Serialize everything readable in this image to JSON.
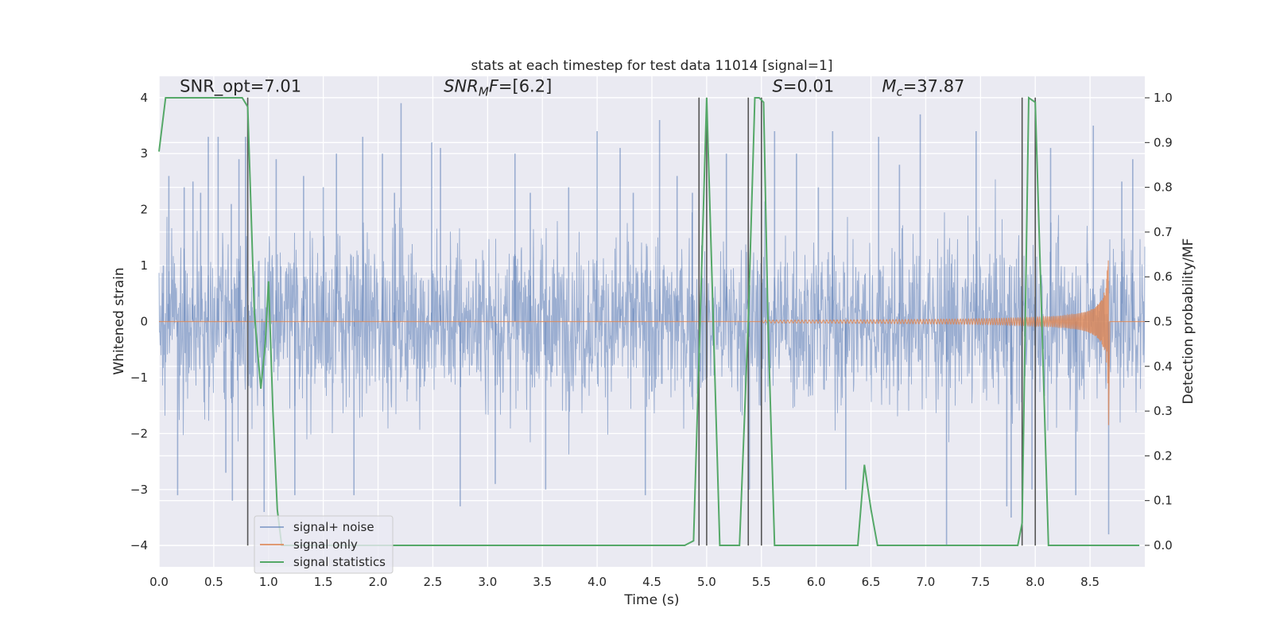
{
  "chart_data": {
    "type": "line",
    "title": "stats at each timestep for test data 11014 [signal=1]",
    "xlabel": "Time (s)",
    "ylabel": "Whitened strain",
    "y2label": "Detection probability/MF",
    "xlim": [
      0.0,
      9.0
    ],
    "ylim": [
      -4.38,
      4.38
    ],
    "y2lim": [
      -0.048,
      1.048
    ],
    "xticks": [
      0.0,
      0.5,
      1.0,
      1.5,
      2.0,
      2.5,
      3.0,
      3.5,
      4.0,
      4.5,
      5.0,
      5.5,
      6.0,
      6.5,
      7.0,
      7.5,
      8.0,
      8.5
    ],
    "xtick_labels": [
      "0.0",
      "0.5",
      "1.0",
      "1.5",
      "2.0",
      "2.5",
      "3.0",
      "3.5",
      "4.0",
      "4.5",
      "5.0",
      "5.5",
      "6.0",
      "6.5",
      "7.0",
      "7.5",
      "8.0",
      "8.5"
    ],
    "yticks": [
      4,
      3,
      2,
      1,
      0,
      -1,
      -2,
      -3,
      -4
    ],
    "ytick_labels": [
      "4",
      "3",
      "2",
      "1",
      "0",
      "−1",
      "−2",
      "−3",
      "−4"
    ],
    "y2ticks": [
      1.0,
      0.9,
      0.8,
      0.7,
      0.6,
      0.5,
      0.4,
      0.3,
      0.2,
      0.1,
      0.0
    ],
    "y2tick_labels": [
      "1.0",
      "0.9",
      "0.8",
      "0.7",
      "0.6",
      "0.5",
      "0.4",
      "0.3",
      "0.2",
      "0.1",
      "0.0"
    ],
    "grid": true,
    "legend_position": "lower-left",
    "annotations": [
      {
        "parts": [
          {
            "t": "SNR_opt=7.01",
            "i": false
          }
        ],
        "x": 0.19,
        "y": 4.1
      },
      {
        "parts": [
          {
            "t": "SNR",
            "i": true
          },
          {
            "t": "M",
            "i": true,
            "sub": true
          },
          {
            "t": "F",
            "i": true
          },
          {
            "t": "=[6.2]",
            "i": false
          }
        ],
        "x": 2.6,
        "y": 4.1
      },
      {
        "parts": [
          {
            "t": "S",
            "i": true
          },
          {
            "t": "=0.01",
            "i": false
          }
        ],
        "x": 5.6,
        "y": 4.1
      },
      {
        "parts": [
          {
            "t": "M",
            "i": true
          },
          {
            "t": "c",
            "i": true,
            "sub": true
          },
          {
            "t": "=37.87",
            "i": false
          }
        ],
        "x": 6.6,
        "y": 4.1
      }
    ],
    "vlines": [
      0.81,
      4.93,
      5.0,
      5.38,
      5.5,
      7.88,
      8.0
    ],
    "series": [
      {
        "name": "signal+ noise",
        "color": "#4c72b0",
        "opacity": 0.5,
        "kind": "noise",
        "spikes": [
          [
            0.04,
            1.0
          ],
          [
            0.09,
            2.6
          ],
          [
            0.17,
            -3.1
          ],
          [
            0.23,
            2.4
          ],
          [
            0.31,
            2.5
          ],
          [
            0.38,
            2.3
          ],
          [
            0.45,
            3.3
          ],
          [
            0.54,
            3.3
          ],
          [
            0.61,
            -2.7
          ],
          [
            0.66,
            2.1
          ],
          [
            0.67,
            -3.2
          ],
          [
            0.73,
            2.9
          ],
          [
            0.79,
            3.3
          ],
          [
            0.96,
            -3.4
          ],
          [
            1.07,
            2.9
          ],
          [
            1.24,
            -3.1
          ],
          [
            1.32,
            2.6
          ],
          [
            1.5,
            2.4
          ],
          [
            1.62,
            3.0
          ],
          [
            1.78,
            -3.1
          ],
          [
            1.86,
            3.3
          ],
          [
            2.04,
            3.0
          ],
          [
            2.15,
            2.3
          ],
          [
            2.21,
            3.9
          ],
          [
            2.49,
            3.2
          ],
          [
            2.57,
            3.1
          ],
          [
            2.75,
            -3.3
          ],
          [
            3.07,
            -2.9
          ],
          [
            3.25,
            3.0
          ],
          [
            3.39,
            2.3
          ],
          [
            3.53,
            -3.0
          ],
          [
            3.74,
            2.4
          ],
          [
            4.0,
            3.4
          ],
          [
            4.21,
            3.1
          ],
          [
            4.33,
            2.3
          ],
          [
            4.44,
            -3.1
          ],
          [
            4.57,
            3.6
          ],
          [
            4.73,
            2.6
          ],
          [
            4.87,
            2.3
          ],
          [
            5.18,
            3.0
          ],
          [
            5.39,
            -3.0
          ],
          [
            5.62,
            3.4
          ],
          [
            5.82,
            3.0
          ],
          [
            6.02,
            2.4
          ],
          [
            6.15,
            3.4
          ],
          [
            6.27,
            -3.0
          ],
          [
            6.57,
            3.3
          ],
          [
            6.76,
            2.8
          ],
          [
            6.95,
            3.7
          ],
          [
            7.19,
            -4.0
          ],
          [
            7.46,
            3.4
          ],
          [
            7.74,
            -3.3
          ],
          [
            7.78,
            -3.5
          ],
          [
            7.97,
            -3.0
          ],
          [
            8.14,
            3.1
          ],
          [
            8.37,
            -3.1
          ],
          [
            8.53,
            3.5
          ],
          [
            8.67,
            -3.8
          ],
          [
            8.79,
            2.5
          ],
          [
            8.89,
            2.9
          ]
        ]
      },
      {
        "name": "signal only",
        "color": "#dd8452",
        "kind": "chirp",
        "merger_time": 8.67,
        "start_time": 5.5,
        "peak_amplitude": 1.6
      },
      {
        "name": "signal statistics",
        "color": "#55a868",
        "axis": "right",
        "x": [
          0.0,
          0.06,
          0.1,
          0.15,
          0.2,
          0.3,
          0.4,
          0.5,
          0.6,
          0.7,
          0.76,
          0.81,
          0.87,
          0.93,
          0.97,
          1.0,
          1.04,
          1.08,
          1.12,
          1.16,
          1.2,
          1.3,
          2.0,
          3.0,
          4.0,
          4.8,
          4.88,
          4.94,
          5.0,
          5.06,
          5.12,
          5.2,
          5.3,
          5.38,
          5.44,
          5.48,
          5.52,
          5.56,
          5.62,
          5.8,
          6.0,
          6.2,
          6.38,
          6.44,
          6.5,
          6.56,
          6.6,
          7.0,
          7.5,
          7.84,
          7.88,
          7.94,
          8.0,
          8.06,
          8.12,
          8.2,
          8.5,
          8.95
        ],
        "y": [
          0.88,
          1.0,
          1.0,
          1.0,
          1.0,
          1.0,
          1.0,
          1.0,
          1.0,
          1.0,
          1.0,
          0.98,
          0.52,
          0.35,
          0.45,
          0.59,
          0.3,
          0.08,
          0.0,
          0.0,
          0.0,
          0.0,
          0.0,
          0.0,
          0.0,
          0.0,
          0.01,
          0.5,
          1.0,
          0.5,
          0.0,
          0.0,
          0.0,
          0.5,
          1.0,
          1.0,
          0.99,
          0.5,
          0.0,
          0.0,
          0.0,
          0.0,
          0.0,
          0.18,
          0.08,
          0.0,
          0.0,
          0.0,
          0.0,
          0.0,
          0.05,
          1.0,
          0.99,
          0.5,
          0.0,
          0.0,
          0.0,
          0.0
        ]
      }
    ]
  }
}
